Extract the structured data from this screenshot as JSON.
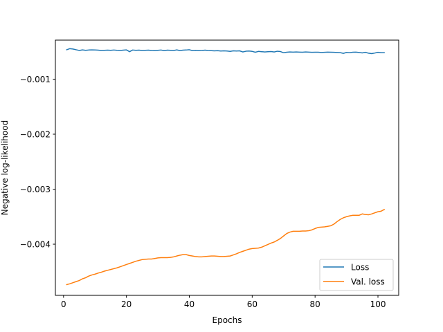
{
  "chart_data": {
    "type": "line",
    "title": "",
    "xlabel": "Epochs",
    "ylabel": "Negative log-likelihood",
    "xlim": [
      -2.6,
      106.6
    ],
    "ylim": [
      -0.00493,
      -0.00029
    ],
    "xticks": [
      0,
      20,
      40,
      60,
      80,
      100
    ],
    "xtick_labels": [
      "0",
      "20",
      "40",
      "60",
      "80",
      "100"
    ],
    "yticks": [
      -0.001,
      -0.002,
      -0.003,
      -0.004
    ],
    "ytick_labels": [
      "−0.001",
      "−0.002",
      "−0.003",
      "−0.004"
    ],
    "grid": false,
    "legend_position": "lower-right",
    "x": [
      1,
      2,
      3,
      4,
      5,
      6,
      7,
      8,
      9,
      10,
      11,
      12,
      13,
      14,
      15,
      16,
      17,
      18,
      19,
      20,
      21,
      22,
      23,
      24,
      25,
      26,
      27,
      28,
      29,
      30,
      31,
      32,
      33,
      34,
      35,
      36,
      37,
      38,
      39,
      40,
      41,
      42,
      43,
      44,
      45,
      46,
      47,
      48,
      49,
      50,
      51,
      52,
      53,
      54,
      55,
      56,
      57,
      58,
      59,
      60,
      61,
      62,
      63,
      64,
      65,
      66,
      67,
      68,
      69,
      70,
      71,
      72,
      73,
      74,
      75,
      76,
      77,
      78,
      79,
      80,
      81,
      82,
      83,
      84,
      85,
      86,
      87,
      88,
      89,
      90,
      91,
      92,
      93,
      94,
      95,
      96,
      97,
      98,
      99,
      100,
      101,
      102
    ],
    "series": [
      {
        "name": "Loss",
        "color": "#1f77b4",
        "values": [
          -0.000465,
          -0.000445,
          -0.000452,
          -0.000465,
          -0.000478,
          -0.000468,
          -0.000475,
          -0.00047,
          -0.000468,
          -0.00047,
          -0.000472,
          -0.000478,
          -0.000475,
          -0.000472,
          -0.000475,
          -0.00047,
          -0.000475,
          -0.000478,
          -0.000472,
          -0.000468,
          -0.0005,
          -0.00047,
          -0.000475,
          -0.000472,
          -0.000478,
          -0.000475,
          -0.000472,
          -0.000478,
          -0.000482,
          -0.000475,
          -0.00047,
          -0.000482,
          -0.000472,
          -0.000475,
          -0.000478,
          -0.000468,
          -0.00048,
          -0.000472,
          -0.00047,
          -0.000465,
          -0.00048,
          -0.000475,
          -0.000482,
          -0.000478,
          -0.000472,
          -0.000478,
          -0.000482,
          -0.000485,
          -0.000482,
          -0.000488,
          -0.000485,
          -0.000488,
          -0.000495,
          -0.000485,
          -0.000488,
          -0.000485,
          -0.000505,
          -0.000492,
          -0.000488,
          -0.000495,
          -0.00051,
          -0.000495,
          -0.0005,
          -0.000505,
          -0.0005,
          -0.000498,
          -0.000505,
          -0.000492,
          -0.000498,
          -0.00052,
          -0.00051,
          -0.000505,
          -0.000508,
          -0.000505,
          -0.000508,
          -0.00051,
          -0.000505,
          -0.000508,
          -0.000512,
          -0.00051,
          -0.00051,
          -0.000515,
          -0.000512,
          -0.000508,
          -0.00051,
          -0.000512,
          -0.000515,
          -0.000518,
          -0.00053,
          -0.000515,
          -0.00052,
          -0.00051,
          -0.000508,
          -0.000515,
          -0.000522,
          -0.000512,
          -0.000528,
          -0.000535,
          -0.000525,
          -0.000512,
          -0.00052,
          -0.00052
        ]
      },
      {
        "name": "Val. loss",
        "color": "#ff7f0e",
        "values": [
          -0.004735,
          -0.00472,
          -0.0047,
          -0.00468,
          -0.00466,
          -0.00463,
          -0.00461,
          -0.00458,
          -0.00456,
          -0.004545,
          -0.004525,
          -0.00451,
          -0.00449,
          -0.004475,
          -0.00446,
          -0.004445,
          -0.00443,
          -0.00441,
          -0.00439,
          -0.00437,
          -0.00435,
          -0.00433,
          -0.00431,
          -0.004295,
          -0.00428,
          -0.004275,
          -0.00427,
          -0.00427,
          -0.00426,
          -0.00425,
          -0.004245,
          -0.004245,
          -0.004245,
          -0.00424,
          -0.00423,
          -0.004215,
          -0.0042,
          -0.00419,
          -0.00419,
          -0.004205,
          -0.004215,
          -0.004225,
          -0.00423,
          -0.00423,
          -0.004225,
          -0.00422,
          -0.004215,
          -0.004215,
          -0.00422,
          -0.004225,
          -0.004225,
          -0.00422,
          -0.004215,
          -0.004195,
          -0.004175,
          -0.00415,
          -0.00413,
          -0.00411,
          -0.00409,
          -0.00408,
          -0.004075,
          -0.00407,
          -0.004055,
          -0.00403,
          -0.004005,
          -0.00398,
          -0.00396,
          -0.00393,
          -0.003895,
          -0.00385,
          -0.003805,
          -0.00378,
          -0.003765,
          -0.003765,
          -0.003765,
          -0.00376,
          -0.00376,
          -0.003755,
          -0.00374,
          -0.003715,
          -0.003695,
          -0.00369,
          -0.003685,
          -0.003675,
          -0.003665,
          -0.003635,
          -0.00359,
          -0.00355,
          -0.00352,
          -0.0035,
          -0.003485,
          -0.003475,
          -0.003475,
          -0.003475,
          -0.00345,
          -0.00346,
          -0.003465,
          -0.00345,
          -0.00343,
          -0.00341,
          -0.0034,
          -0.00337
        ]
      }
    ]
  }
}
